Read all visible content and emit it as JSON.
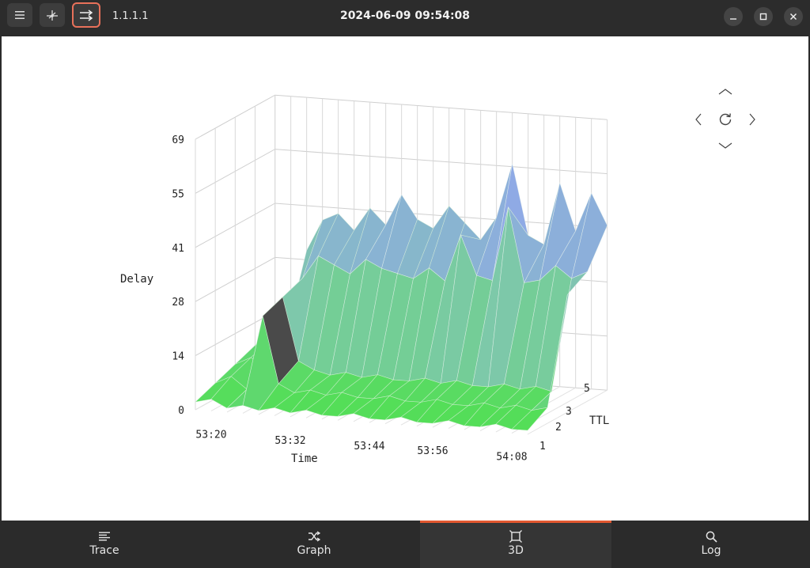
{
  "header": {
    "host": "1.1.1.1",
    "timestamp": "2024-06-09 09:54:08",
    "left_buttons": [
      {
        "name": "menu-button",
        "icon": "hamburger-icon"
      },
      {
        "name": "graph-view-button",
        "icon": "network-icon"
      },
      {
        "name": "trace-toggle-button",
        "icon": "shuffle-arrows-icon",
        "active": true
      }
    ],
    "window_controls": [
      "minimize-icon",
      "maximize-icon",
      "close-icon"
    ]
  },
  "view_controls": [
    "up-arrow",
    "left-arrow",
    "reset-rotation",
    "right-arrow",
    "down-arrow"
  ],
  "chart_data": {
    "type": "surface-3d",
    "zlabel": "Delay",
    "xlabel": "Time",
    "ylabel": "TTL",
    "z_ticks": [
      "0",
      "14",
      "28",
      "41",
      "55",
      "69"
    ],
    "x_ticks": [
      "53:20",
      "53:32",
      "53:44",
      "53:56",
      "54:08"
    ],
    "y_ticks": [
      "1",
      "2",
      "3",
      "5"
    ],
    "zlim": [
      0,
      69
    ],
    "ttl": [
      1,
      2,
      3,
      4,
      5
    ],
    "time_steps": 22,
    "series": [
      {
        "ttl": 1,
        "values": [
          2,
          3,
          1,
          2,
          1,
          2,
          1,
          2,
          1,
          1,
          2,
          1,
          1,
          2,
          1,
          1,
          2,
          1,
          1,
          2,
          1,
          1
        ]
      },
      {
        "ttl": 2,
        "values": [
          4,
          6,
          3,
          22,
          5,
          3,
          4,
          3,
          4,
          3,
          3,
          4,
          3,
          3,
          4,
          3,
          3,
          4,
          3,
          4,
          3,
          4
        ]
      },
      {
        "ttl": 3,
        "values": [
          6,
          8,
          5,
          24,
          8,
          6,
          5,
          6,
          5,
          6,
          5,
          5,
          6,
          5,
          6,
          5,
          5,
          6,
          5,
          6,
          5,
          30
        ]
      },
      {
        "ttl": 4,
        "values": [
          8,
          10,
          12,
          26,
          32,
          30,
          28,
          32,
          30,
          29,
          28,
          31,
          28,
          40,
          30,
          29,
          48,
          29,
          30,
          34,
          31,
          33
        ]
      },
      {
        "ttl": 5,
        "values": [
          10,
          12,
          30,
          38,
          40,
          36,
          42,
          38,
          46,
          40,
          38,
          44,
          40,
          36,
          42,
          56,
          38,
          36,
          52,
          40,
          50,
          42
        ]
      }
    ],
    "colors": {
      "low": "#4fe04f",
      "mid": "#7dc9a8",
      "high": "#8fa9e6",
      "shadow": "#4a4a4a"
    },
    "grid": true
  },
  "tabs": [
    {
      "label": "Trace",
      "icon": "list-icon",
      "active": false
    },
    {
      "label": "Graph",
      "icon": "shuffle-icon",
      "active": false
    },
    {
      "label": "3D",
      "icon": "cube-frame-icon",
      "active": true
    },
    {
      "label": "Log",
      "icon": "search-icon",
      "active": false
    }
  ]
}
